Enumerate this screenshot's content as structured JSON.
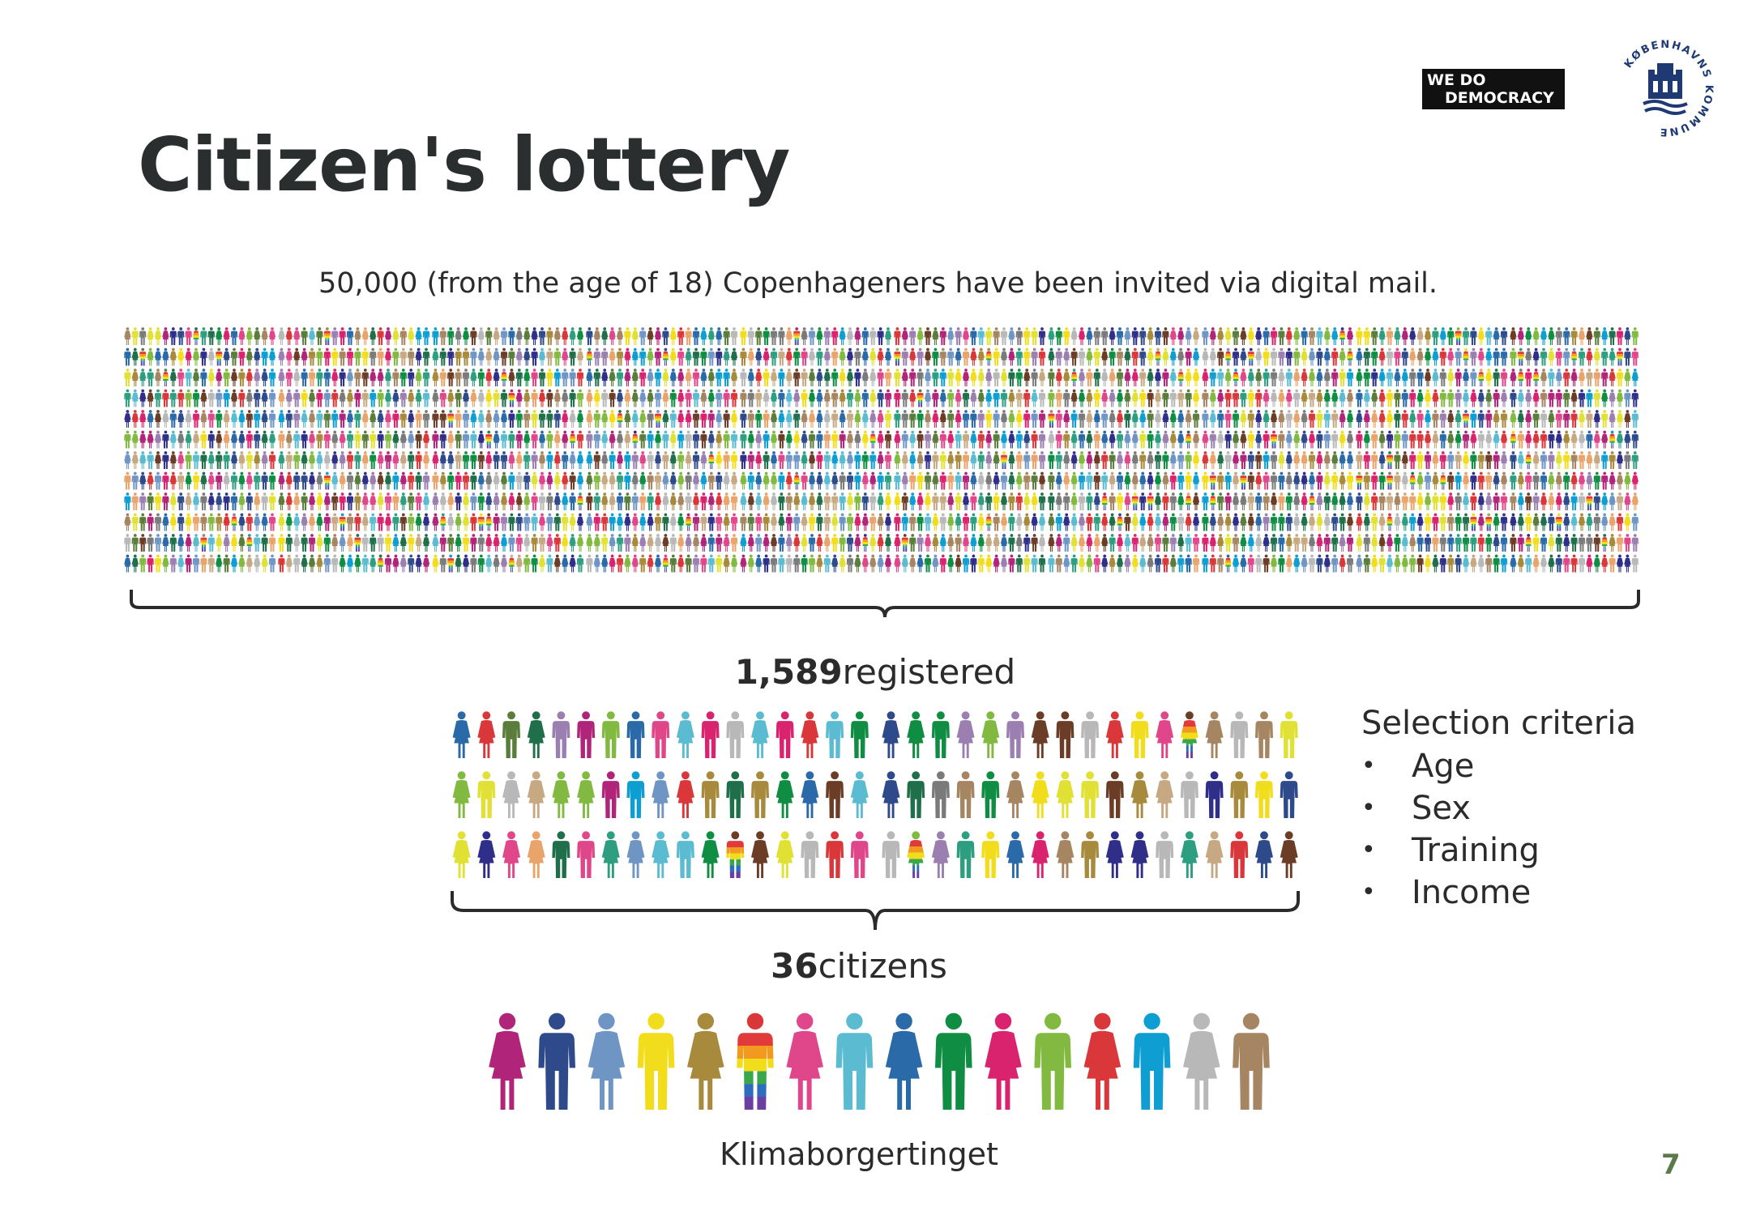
{
  "slide": {
    "title": "Citizen's lottery",
    "invite_text": "50,000 (from the age of 18) Copenhageners have been invited via digital mail.",
    "registered_number": "1,589",
    "registered_label": "registered",
    "citizens_number": "36",
    "citizens_label": "citizens",
    "footer": "Klimaborgertinget",
    "page_number": "7"
  },
  "criteria": {
    "title": "Selection criteria",
    "items": [
      "Age",
      "Sex",
      "Training",
      "Income"
    ]
  },
  "logos": {
    "wedo_line1": "WE  DO",
    "wedo_line2": "DEMOCRACY",
    "seal_text": "KØBENHAVNS KOMMUNE"
  },
  "colors": {
    "accent_page_number": "#5a7a4a",
    "figure_palette": [
      "#b02579",
      "#2e4a8b",
      "#6f95c4",
      "#f2dd1c",
      "#a88a3d",
      "#e0468a",
      "#5bbbd0",
      "#2a6aa8",
      "#0f8d42",
      "#d9236e",
      "#82b941",
      "#d9373a",
      "#0e9ed1",
      "#b8b8b8",
      "#a68662",
      "#5b7d3c",
      "#6b3c26",
      "#e8a46a",
      "#2e9e80",
      "#9a7fb0",
      "#1f6f4a",
      "#7a7a7a",
      "#c6a982",
      "#2f2f8a",
      "#e1e135"
    ],
    "rainbow": [
      "#e03a3a",
      "#f29a1f",
      "#f2dd1c",
      "#3aa84a",
      "#2d6cc0",
      "#6b3fa0"
    ]
  }
}
